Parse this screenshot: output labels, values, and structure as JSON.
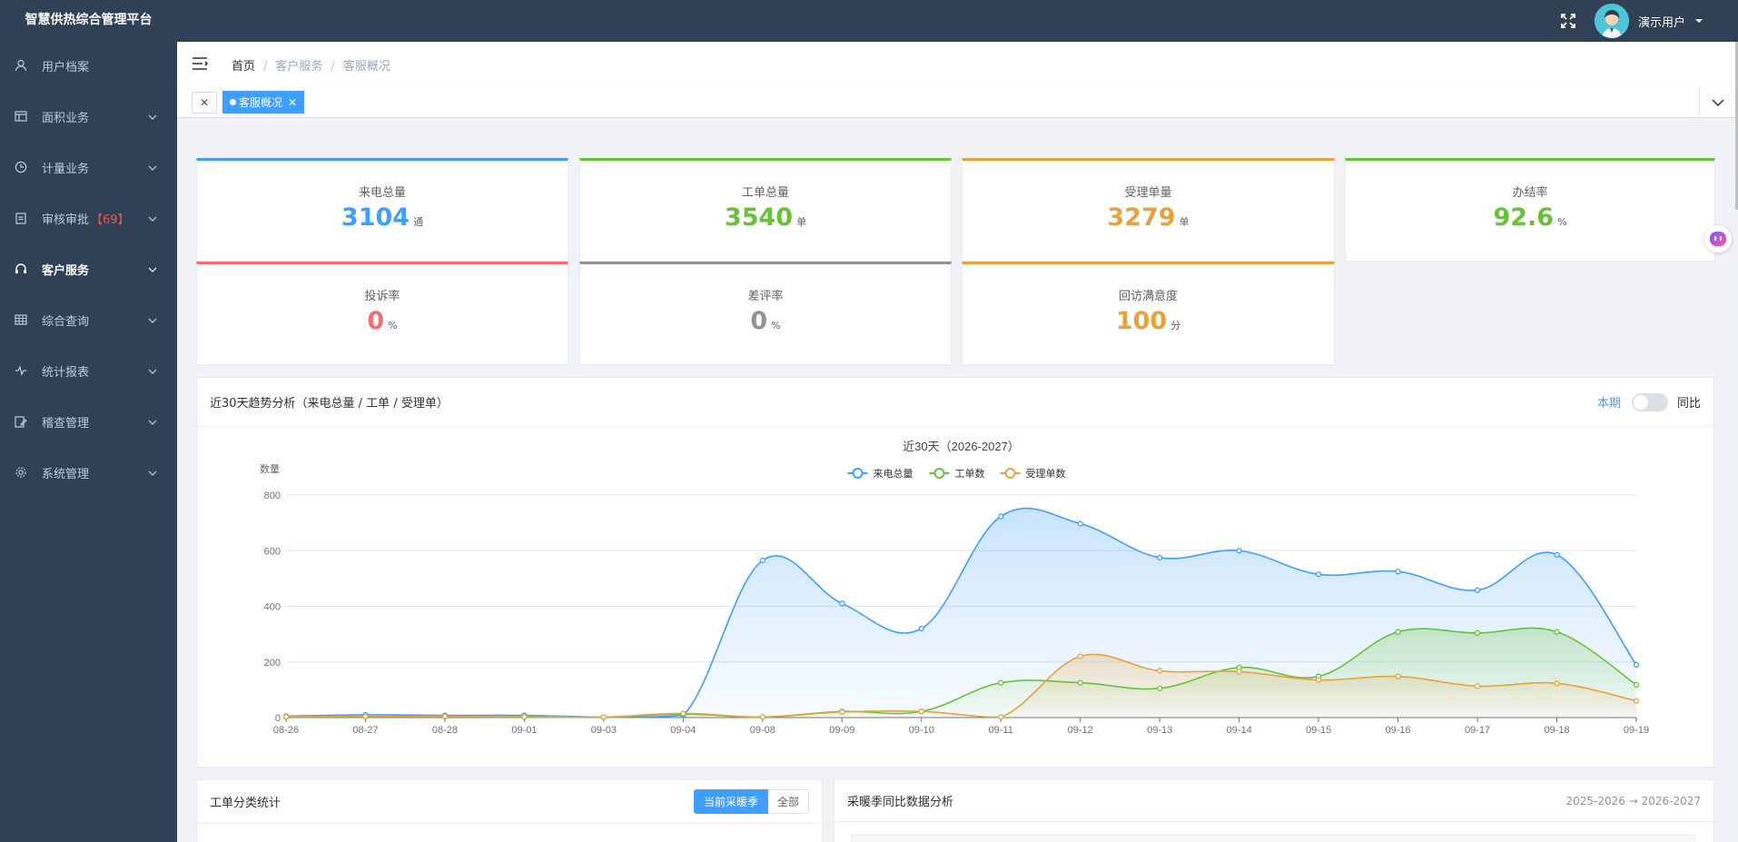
{
  "app": {
    "title": "智慧供热综合管理平台"
  },
  "sidebar": {
    "items": [
      {
        "label": "用户档案",
        "icon": "user-icon",
        "has_children": false
      },
      {
        "label": "面积业务",
        "icon": "table-icon",
        "has_children": true
      },
      {
        "label": "计量业务",
        "icon": "clock-icon",
        "has_children": true
      },
      {
        "label": "审核审批",
        "count": "【69】",
        "icon": "clipboard-icon",
        "has_children": true
      },
      {
        "label": "客户服务",
        "icon": "headset-icon",
        "has_children": true,
        "active": true
      },
      {
        "label": "综合查询",
        "icon": "grid-icon",
        "has_children": true
      },
      {
        "label": "统计报表",
        "icon": "pulse-icon",
        "has_children": true
      },
      {
        "label": "稽查管理",
        "icon": "edit-icon",
        "has_children": true
      },
      {
        "label": "系统管理",
        "icon": "gear-icon",
        "has_children": true
      }
    ]
  },
  "topbar": {
    "user_name": "演示用户"
  },
  "breadcrumb": [
    "首页",
    "客户服务",
    "客服概况"
  ],
  "tags": {
    "active_label": "客服概况"
  },
  "stats": [
    {
      "label": "来电总量",
      "value": "3104",
      "unit": "通",
      "color": "#409eff"
    },
    {
      "label": "工单总量",
      "value": "3540",
      "unit": "单",
      "color": "#67c23a"
    },
    {
      "label": "受理单量",
      "value": "3279",
      "unit": "单",
      "color": "#e6a23c"
    },
    {
      "label": "办结率",
      "value": "92.6",
      "unit": "%",
      "color": "#67c23a"
    },
    {
      "label": "投诉率",
      "value": "0",
      "unit": "%",
      "color": "#f56c6c"
    },
    {
      "label": "差评率",
      "value": "0",
      "unit": "%",
      "color": "#909399"
    },
    {
      "label": "回访满意度",
      "value": "100",
      "unit": "分",
      "color": "#e6a23c"
    }
  ],
  "trend_panel": {
    "title": "近30天趋势分析（来电总量 / 工单 / 受理单）",
    "period_label": "本期",
    "yoy_label": "同比"
  },
  "chart_data": {
    "type": "line",
    "title": "近30天（2026-2027）",
    "ylabel": "数量",
    "ylim": [
      0,
      800
    ],
    "yticks": [
      0,
      200,
      400,
      600,
      800
    ],
    "grid": true,
    "legend_position": "top",
    "categories": [
      "08-26",
      "08-27",
      "08-28",
      "09-01",
      "09-03",
      "09-04",
      "09-08",
      "09-09",
      "09-10",
      "09-11",
      "09-12",
      "09-13",
      "09-14",
      "09-15",
      "09-16",
      "09-17",
      "09-18",
      "09-19"
    ],
    "series": [
      {
        "name": "来电总量",
        "color": "#409eff",
        "values": [
          5,
          10,
          8,
          8,
          2,
          8,
          565,
          410,
          320,
          723,
          697,
          575,
          600,
          515,
          525,
          458,
          585,
          190
        ]
      },
      {
        "name": "工单数",
        "color": "#67c23a",
        "values": [
          2,
          3,
          3,
          2,
          1,
          12,
          2,
          22,
          22,
          125,
          125,
          105,
          180,
          148,
          308,
          304,
          308,
          118
        ]
      },
      {
        "name": "受理单数",
        "color": "#e6a23c",
        "values": [
          3,
          4,
          4,
          3,
          2,
          15,
          2,
          20,
          22,
          2,
          220,
          168,
          165,
          135,
          148,
          113,
          123,
          60
        ]
      }
    ]
  },
  "work_order_panel": {
    "title": "工单分类统计",
    "btn_current": "当前采暖季",
    "btn_all": "全部"
  },
  "season_panel": {
    "title": "采暖季同比数据分析",
    "range": "2025-2026 → 2026-2027"
  }
}
